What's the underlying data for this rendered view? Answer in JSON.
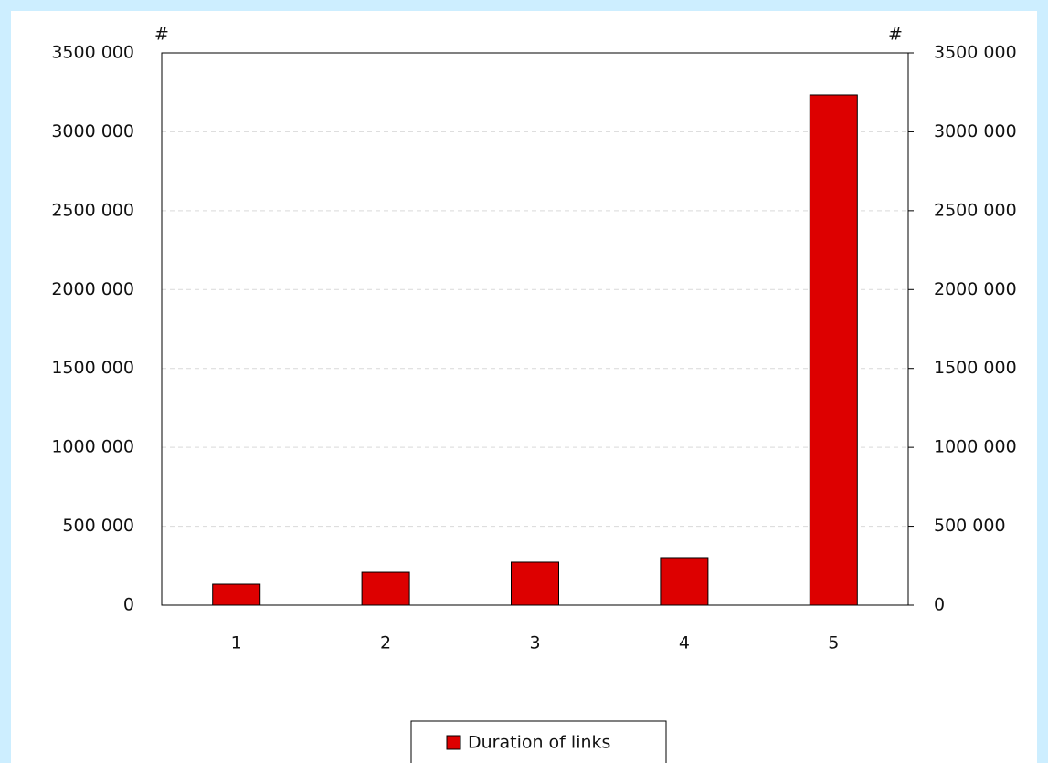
{
  "chart_data": {
    "type": "bar",
    "ylabel": "#",
    "y2label": "#",
    "categories": [
      "1",
      "2",
      "3",
      "4",
      "5"
    ],
    "series": [
      {
        "name": "Duration of links",
        "color": "#dd0000",
        "values": [
          133000,
          208000,
          272000,
          301000,
          3234000
        ]
      }
    ],
    "ylim": [
      0,
      3500000
    ],
    "yticks": [
      0,
      {
        "value": 500000,
        "label": "500 000"
      },
      {
        "value": 1000000,
        "label": "1000 000"
      },
      {
        "value": 1500000,
        "label": "1500 000"
      },
      {
        "value": 2000000,
        "label": "2000 000"
      },
      {
        "value": 2500000,
        "label": "2500 000"
      },
      {
        "value": 3000000,
        "label": "3000 000"
      },
      {
        "value": 3500000,
        "label": "3500 000"
      }
    ],
    "y2lim": [
      0,
      3500000
    ],
    "y2ticks": [
      0,
      {
        "value": 500000,
        "label": "500 000"
      },
      {
        "value": 1000000,
        "label": "1000 000"
      },
      {
        "value": 1500000,
        "label": "1500 000"
      },
      {
        "value": 2000000,
        "label": "2000 000"
      },
      {
        "value": 2500000,
        "label": "2500 000"
      },
      {
        "value": 3000000,
        "label": "3000 000"
      },
      {
        "value": 3500000,
        "label": "3500 000"
      }
    ],
    "grid": true,
    "legend": "bottom"
  }
}
